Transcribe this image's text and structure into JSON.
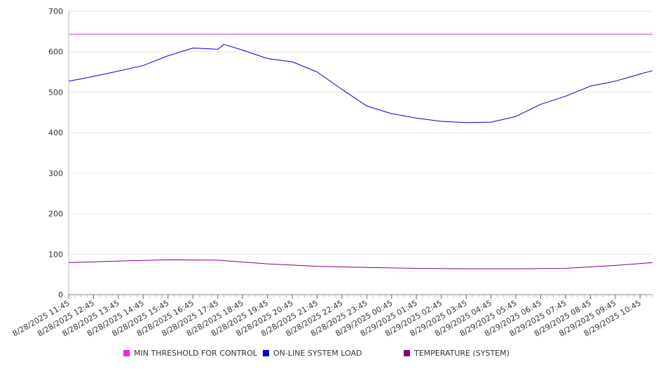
{
  "chart_data": {
    "type": "line",
    "grid": true,
    "ylim": [
      0,
      700
    ],
    "y_ticks": [
      "0",
      "100",
      "200",
      "300",
      "400",
      "500",
      "600",
      "700"
    ],
    "x_range": [
      "8/28/2025 11:45",
      "8/29/2025 11:15"
    ],
    "x_tick_labels": [
      "8/28/2025 11:45",
      "8/28/2025 12:45",
      "8/28/2025 13:45",
      "8/28/2025 14:45",
      "8/28/2025 15:45",
      "8/28/2025 16:45",
      "8/28/2025 17:45",
      "8/28/2025 18:45",
      "8/28/2025 19:45",
      "8/28/2025 20:45",
      "8/28/2025 21:45",
      "8/28/2025 22:45",
      "8/28/2025 23:45",
      "8/29/2025 00:45",
      "8/29/2025 01:45",
      "8/29/2025 02:45",
      "8/29/2025 03:45",
      "8/29/2025 04:45",
      "8/29/2025 05:45",
      "8/29/2025 06:45",
      "8/29/2025 07:45",
      "8/29/2025 08:45",
      "8/29/2025 09:45",
      "8/29/2025 10:45"
    ],
    "legend_position": "bottom",
    "series": [
      {
        "name": "MIN THRESHOLD FOR CONTROL",
        "color": "#cc33cc",
        "x": [
          "8/28/2025 11:45",
          "8/29/2025 11:15"
        ],
        "y": [
          643,
          643
        ]
      },
      {
        "name": "ON-LINE SYSTEM LOAD",
        "color": "#0000cc",
        "x": [
          "8/28/2025 11:45",
          "8/28/2025 12:45",
          "8/28/2025 13:45",
          "8/28/2025 14:45",
          "8/28/2025 15:45",
          "8/28/2025 16:45",
          "8/28/2025 17:45",
          "8/28/2025 18:00",
          "8/28/2025 18:45",
          "8/28/2025 19:45",
          "8/28/2025 20:45",
          "8/28/2025 21:45",
          "8/28/2025 22:45",
          "8/28/2025 23:45",
          "8/29/2025 00:45",
          "8/29/2025 01:45",
          "8/29/2025 02:45",
          "8/29/2025 03:45",
          "8/29/2025 04:45",
          "8/29/2025 05:45",
          "8/29/2025 06:45",
          "8/29/2025 07:45",
          "8/29/2025 08:45",
          "8/29/2025 09:45",
          "8/29/2025 10:45",
          "8/29/2025 11:15"
        ],
        "y": [
          527,
          539,
          552,
          566,
          590,
          609,
          606,
          618,
          604,
          583,
          575,
          550,
          507,
          466,
          447,
          436,
          428,
          425,
          426,
          440,
          470,
          490,
          515,
          527,
          545,
          553
        ]
      },
      {
        "name": "TEMPERATURE (SYSTEM)",
        "color": "#800080",
        "x": [
          "8/28/2025 11:45",
          "8/28/2025 13:45",
          "8/28/2025 15:45",
          "8/28/2025 17:45",
          "8/28/2025 19:45",
          "8/28/2025 21:45",
          "8/28/2025 23:45",
          "8/29/2025 01:45",
          "8/29/2025 03:45",
          "8/29/2025 05:45",
          "8/29/2025 07:45",
          "8/29/2025 09:45",
          "8/29/2025 11:15"
        ],
        "y": [
          79,
          83,
          86,
          85,
          76,
          70,
          67,
          65,
          64,
          64,
          65,
          72,
          79
        ]
      }
    ]
  }
}
